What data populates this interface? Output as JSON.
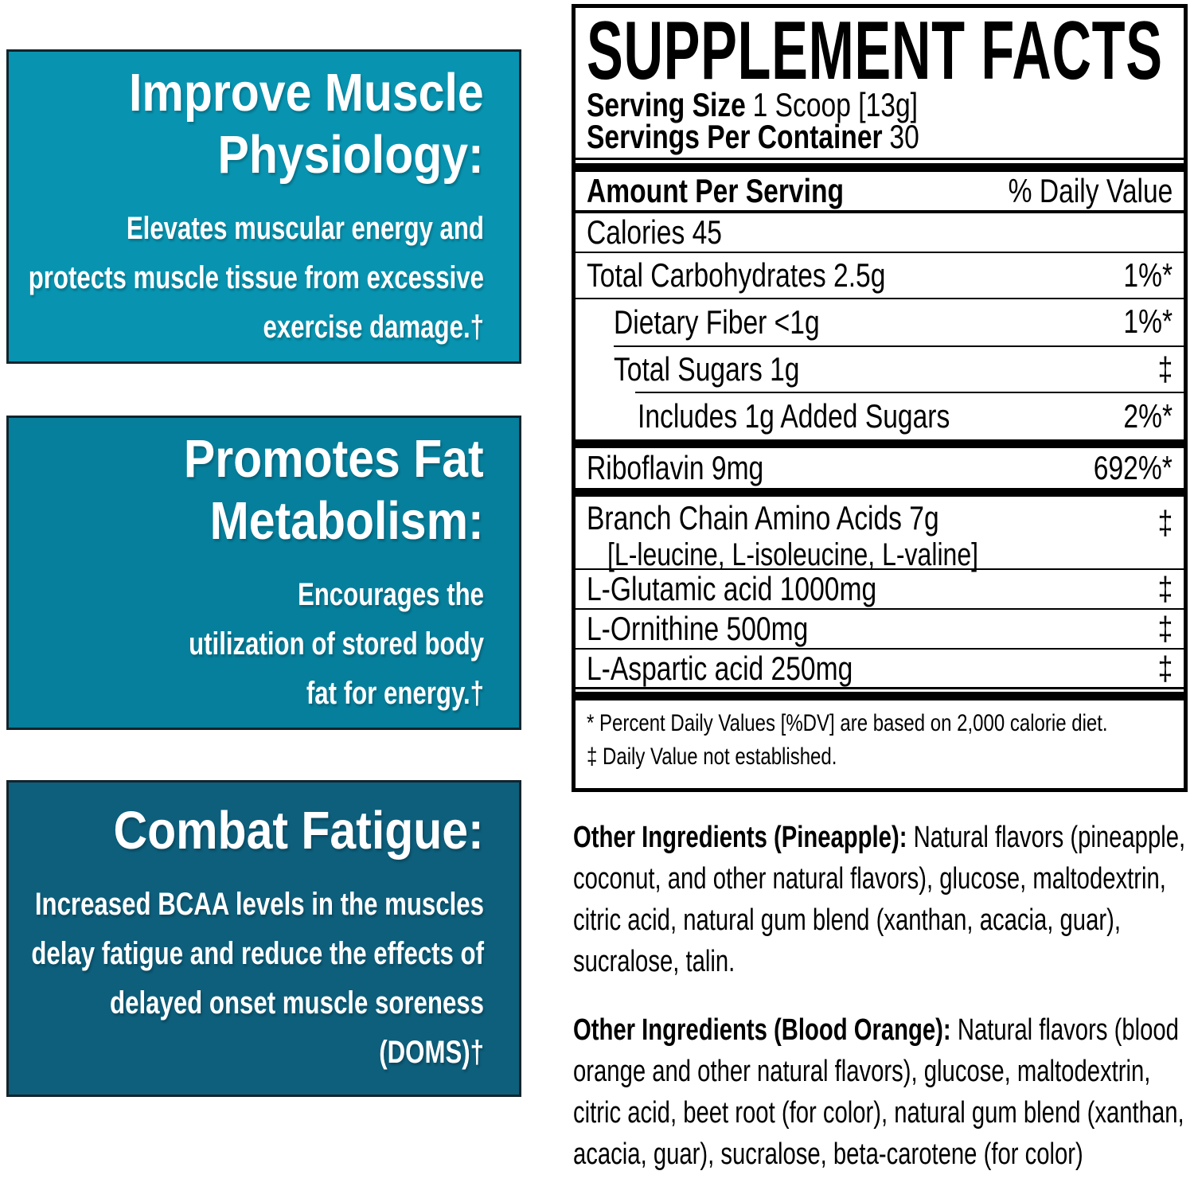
{
  "colors": {
    "box1_bg": "#0894B1",
    "box2_bg": "#067F9C",
    "box3_bg": "#0D5F7C",
    "box_border": "#13242c",
    "panel_border": "#000000",
    "box_text": "#FFFFFF",
    "panel_text": "#000000"
  },
  "benefits": [
    {
      "title": "Improve Muscle Physiology:",
      "body": "Elevates muscular energy and protects muscle tissue from excessive exercise damage.†"
    },
    {
      "title": "Promotes Fat Metabolism:",
      "body": "Encourages the utilization of stored body fat for energy.†"
    },
    {
      "title": "Combat Fatigue:",
      "body": "Increased BCAA levels in the muscles delay fatigue and reduce the effects of delayed onset muscle soreness (DOMS)†"
    }
  ],
  "panel": {
    "title": "SUPPLEMENT FACTS",
    "serving_size_label": "Serving Size",
    "serving_size_value": "1 Scoop [13g]",
    "servings_label": "Servings Per Container",
    "servings_value": "30",
    "col_left": "Amount Per Serving",
    "col_right": "% Daily Value",
    "rows": [
      {
        "label": "Calories 45",
        "value": ""
      },
      {
        "label": "Total Carbohydrates 2.5g",
        "value": "1%*"
      },
      {
        "label": "Dietary Fiber <1g",
        "value": "1%*"
      },
      {
        "label": "Total Sugars 1g",
        "value": "‡"
      },
      {
        "label": "Includes 1g Added Sugars",
        "value": "2%*"
      },
      {
        "label": "Riboflavin 9mg",
        "value": "692%*"
      },
      {
        "label": "Branch Chain Amino Acids 7g",
        "sub": "[L-leucine, L-isoleucine, L-valine]",
        "value": "‡"
      },
      {
        "label": "L-Glutamic acid 1000mg",
        "value": "‡"
      },
      {
        "label": "L-Ornithine 500mg",
        "value": "‡"
      },
      {
        "label": "L-Aspartic acid 250mg",
        "value": "‡"
      }
    ],
    "footnotes": [
      "* Percent Daily Values [%DV] are based on 2,000 calorie diet.",
      "‡ Daily Value not established."
    ]
  },
  "other_ingredients": [
    {
      "lead": "Other Ingredients (Pineapple):",
      "text": "Natural flavors (pineapple, coconut, and other natural flavors), glucose, maltodextrin, citric acid, natural gum blend (xanthan, acacia, guar), sucralose, talin."
    },
    {
      "lead": "Other Ingredients (Blood Orange):",
      "text": "Natural flavors (blood orange and other natural flavors), glucose, maltodextrin, citric acid, beet root (for color), natural gum blend (xanthan, acacia, guar), sucralose, beta-carotene (for color)"
    }
  ]
}
